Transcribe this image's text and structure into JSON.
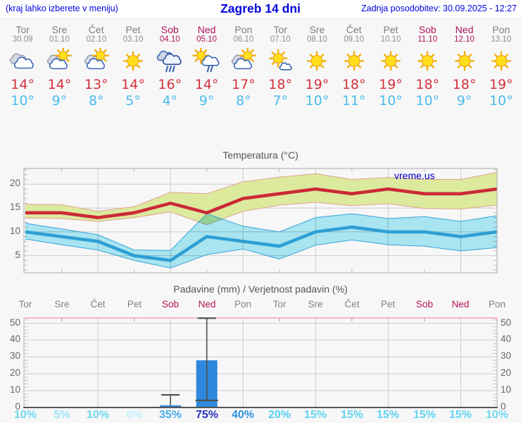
{
  "header": {
    "menu_hint": "(kraj lahko izberete v meniju)",
    "title": "Zagreb 14 dni",
    "last_update": "Zadnja posodobitev: 30.09.2025 - 12:27"
  },
  "colors": {
    "header_text": "#0000dd",
    "weekday_text": "#7e7e7e",
    "weekend_text": "#b3125a",
    "tmax_text": "#d4323e",
    "tmin_text": "#4cbcee",
    "max_line": "#cc2936",
    "max_band": "#dcea9e",
    "max_band_edge": "#e2a28e",
    "min_line": "#2e9fd4",
    "min_band": "#a8e5f0",
    "band_overlap": "#91d295",
    "bar_fill": "#2e88dd",
    "whisker": "#4d4d4d",
    "grid": "#cccccc",
    "precip_top_border": "#ee8fa8"
  },
  "days": [
    {
      "day": "Tor",
      "date": "30.09",
      "weekend": false,
      "icon": "cloudy",
      "tmax_label": "14°",
      "tmin_label": "10°"
    },
    {
      "day": "Sre",
      "date": "01.10",
      "weekend": false,
      "icon": "partly-cloudy",
      "tmax_label": "14°",
      "tmin_label": "9°"
    },
    {
      "day": "Čet",
      "date": "02.10",
      "weekend": false,
      "icon": "partly-cloudy",
      "tmax_label": "13°",
      "tmin_label": "8°"
    },
    {
      "day": "Pet",
      "date": "03.10",
      "weekend": false,
      "icon": "sunny",
      "tmax_label": "14°",
      "tmin_label": "5°"
    },
    {
      "day": "Sob",
      "date": "04.10",
      "weekend": true,
      "icon": "rain",
      "tmax_label": "16°",
      "tmin_label": "4°"
    },
    {
      "day": "Ned",
      "date": "05.10",
      "weekend": true,
      "icon": "sun-rain",
      "tmax_label": "14°",
      "tmin_label": "9°"
    },
    {
      "day": "Pon",
      "date": "06.10",
      "weekend": false,
      "icon": "partly-cloudy",
      "tmax_label": "17°",
      "tmin_label": "8°"
    },
    {
      "day": "Tor",
      "date": "07.10",
      "weekend": false,
      "icon": "mostly-sunny",
      "tmax_label": "18°",
      "tmin_label": "7°"
    },
    {
      "day": "Sre",
      "date": "08.10",
      "weekend": false,
      "icon": "sunny",
      "tmax_label": "19°",
      "tmin_label": "10°"
    },
    {
      "day": "Čet",
      "date": "09.10",
      "weekend": false,
      "icon": "sunny",
      "tmax_label": "18°",
      "tmin_label": "11°"
    },
    {
      "day": "Pet",
      "date": "10.10",
      "weekend": false,
      "icon": "sunny",
      "tmax_label": "19°",
      "tmin_label": "10°"
    },
    {
      "day": "Sob",
      "date": "11.10",
      "weekend": true,
      "icon": "sunny",
      "tmax_label": "18°",
      "tmin_label": "10°"
    },
    {
      "day": "Ned",
      "date": "12.10",
      "weekend": true,
      "icon": "sunny",
      "tmax_label": "18°",
      "tmin_label": "9°"
    },
    {
      "day": "Pon",
      "date": "13.10",
      "weekend": false,
      "icon": "sunny",
      "tmax_label": "19°",
      "tmin_label": "10°"
    }
  ],
  "chart_data": [
    {
      "type": "line",
      "title": "Temperatura (°C)",
      "watermark": "vreme.us",
      "categories": [
        "Tor 30.09",
        "Sre 01.10",
        "Čet 02.10",
        "Pet 03.10",
        "Sob 04.10",
        "Ned 05.10",
        "Pon 06.10",
        "Tor 07.10",
        "Sre 08.10",
        "Čet 09.10",
        "Pet 10.10",
        "Sob 11.10",
        "Ned 12.10",
        "Pon 13.10"
      ],
      "yticks": [
        5,
        10,
        15,
        20
      ],
      "ylim": [
        1.4,
        23.3
      ],
      "grid": true,
      "legend": false,
      "series": [
        {
          "name": "max temperature",
          "values": [
            14,
            14,
            13,
            14,
            16,
            14,
            17,
            18,
            19,
            18,
            19,
            18,
            18,
            19
          ]
        },
        {
          "name": "max band upper",
          "values": [
            15.8,
            15.7,
            14.3,
            15.3,
            18.3,
            18.0,
            20.5,
            21.5,
            22.2,
            21.0,
            21.4,
            21.0,
            21.0,
            22.5
          ]
        },
        {
          "name": "max band lower",
          "values": [
            12.9,
            12.8,
            12.2,
            13.0,
            14.2,
            11.5,
            14.3,
            15.6,
            16.2,
            15.5,
            15.9,
            14.9,
            14.8,
            15.6
          ]
        },
        {
          "name": "min temperature",
          "values": [
            10,
            9,
            8,
            5,
            4,
            9,
            8,
            7,
            10,
            11,
            10,
            10,
            9,
            10
          ]
        },
        {
          "name": "min band upper",
          "values": [
            11.8,
            10.6,
            9.4,
            6.2,
            6.1,
            13.8,
            11.2,
            10.0,
            13.0,
            13.8,
            12.8,
            13.2,
            12.2,
            13.4
          ]
        },
        {
          "name": "min band lower",
          "values": [
            8.5,
            7.3,
            6.2,
            4.0,
            2.4,
            5.2,
            6.4,
            4.3,
            7.2,
            8.3,
            7.3,
            7.0,
            6.0,
            6.7
          ]
        }
      ]
    },
    {
      "type": "bar",
      "title": "Padavine (mm) / Verjetnost padavin (%)",
      "categories": [
        "Tor",
        "Sre",
        "Čet",
        "Pet",
        "Sob",
        "Ned",
        "Pon",
        "Tor",
        "Sre",
        "Čet",
        "Pet",
        "Sob",
        "Ned",
        "Pon"
      ],
      "weekend_indices": [
        4,
        5,
        11,
        12
      ],
      "values_mm": [
        0,
        0,
        0,
        0,
        1.3,
        28,
        0,
        0,
        0,
        0,
        0,
        0,
        0,
        0
      ],
      "whiskers": [
        {
          "day_index": 4,
          "low": 1.3,
          "high": 7.5
        },
        {
          "day_index": 5,
          "low": 4.2,
          "high": 53
        }
      ],
      "probability_pct": [
        10,
        5,
        10,
        0,
        35,
        75,
        40,
        20,
        15,
        15,
        15,
        15,
        15,
        10
      ],
      "probability_colors": {
        "0": "#c3f1fa",
        "5": "#9ce7f6",
        "10": "#6ed9f1",
        "15": "#60d4f0",
        "20": "#54cfee",
        "35": "#45abe8",
        "40": "#2b93de",
        "75": "#2531c1"
      },
      "yticks": [
        0,
        10,
        20,
        30,
        40,
        50
      ],
      "ylim": [
        0,
        53
      ],
      "grid": true
    }
  ]
}
